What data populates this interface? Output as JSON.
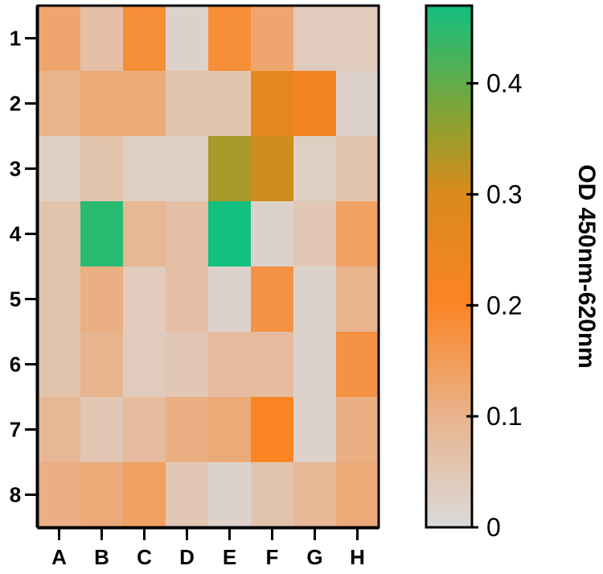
{
  "chart_data": {
    "type": "heatmap",
    "title": "",
    "columns": [
      "A",
      "B",
      "C",
      "D",
      "E",
      "F",
      "G",
      "H"
    ],
    "rows": [
      "1",
      "2",
      "3",
      "4",
      "5",
      "6",
      "7",
      "8"
    ],
    "values": [
      [
        0.13,
        0.07,
        0.18,
        0.02,
        0.18,
        0.13,
        0.04,
        0.04
      ],
      [
        0.1,
        0.12,
        0.12,
        0.06,
        0.06,
        0.26,
        0.23,
        0.02
      ],
      [
        0.03,
        0.06,
        0.03,
        0.03,
        0.34,
        0.31,
        0.03,
        0.06
      ],
      [
        0.06,
        0.45,
        0.09,
        0.07,
        0.47,
        0.02,
        0.05,
        0.14
      ],
      [
        0.06,
        0.11,
        0.04,
        0.07,
        0.02,
        0.17,
        0.02,
        0.1
      ],
      [
        0.06,
        0.1,
        0.04,
        0.05,
        0.08,
        0.08,
        0.02,
        0.17
      ],
      [
        0.09,
        0.05,
        0.08,
        0.11,
        0.12,
        0.2,
        0.02,
        0.11
      ],
      [
        0.11,
        0.12,
        0.14,
        0.05,
        0.02,
        0.06,
        0.09,
        0.12
      ]
    ],
    "colorbar": {
      "label": "OD 450nm-620nm",
      "min": 0,
      "max": 0.47,
      "ticks": [
        0,
        0.1,
        0.2,
        0.3,
        0.4
      ],
      "tick_labels": [
        "0",
        "0.1",
        "0.2",
        "0.3",
        "0.4"
      ],
      "colors": [
        "#dadada",
        "#e8b48e",
        "#fb8423",
        "#d98a1c",
        "#8fa02e",
        "#12c080"
      ]
    },
    "xlabel": "",
    "ylabel": ""
  }
}
